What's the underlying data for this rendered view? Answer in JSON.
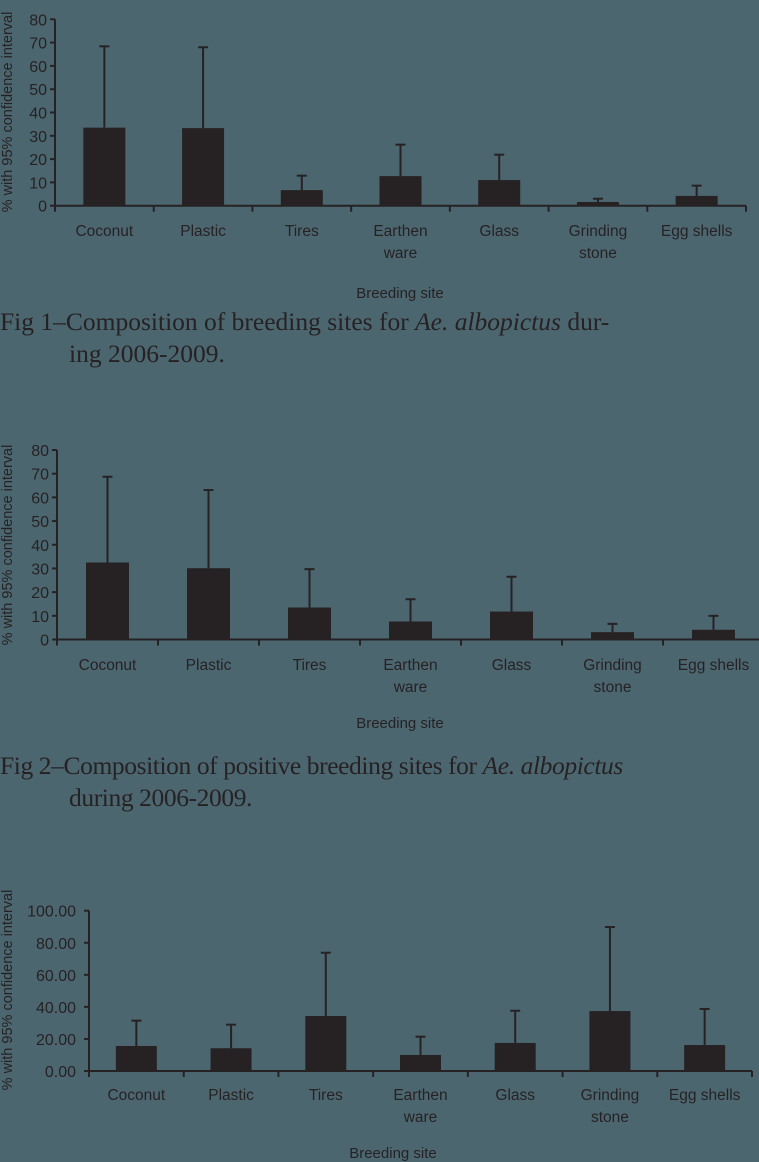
{
  "colors": {
    "background": "#4c6670",
    "ink": "#262223"
  },
  "chart_data": [
    {
      "type": "bar",
      "id": "fig1",
      "title": "Fig 1–Composition of breeding sites for Ae. albopictus during 2006-2009.",
      "xlabel": "Breeding site",
      "ylabel": "% with 95% confidence interval",
      "categories": [
        "Coconut",
        "Plastic",
        "Tires",
        "Earthen ware",
        "Glass",
        "Grinding stone",
        "Egg shells"
      ],
      "category_lines": [
        [
          "Coconut"
        ],
        [
          "Plastic"
        ],
        [
          "Tires"
        ],
        [
          "Earthen",
          "ware"
        ],
        [
          "Glass"
        ],
        [
          "Grinding",
          "stone"
        ],
        [
          "Egg shells"
        ]
      ],
      "values": [
        33.5,
        33.3,
        6.7,
        12.7,
        11.0,
        1.6,
        4.2
      ],
      "error_upper": [
        68.4,
        68.0,
        12.9,
        26.2,
        21.9,
        3.0,
        8.6
      ],
      "yticks": [
        "0",
        "10",
        "20",
        "30",
        "40",
        "50",
        "60",
        "70",
        "80"
      ],
      "ylim": [
        0,
        80
      ],
      "grid": false,
      "legend": null
    },
    {
      "type": "bar",
      "id": "fig2",
      "title": "Fig 2–Composition of positive breeding sites for Ae. albopictus during 2006-2009.",
      "xlabel": "Breeding site",
      "ylabel": "% with 95% confidence interval",
      "categories": [
        "Coconut",
        "Plastic",
        "Tires",
        "Earthen ware",
        "Glass",
        "Grinding stone",
        "Egg shells"
      ],
      "category_lines": [
        [
          "Coconut"
        ],
        [
          "Plastic"
        ],
        [
          "Tires"
        ],
        [
          "Earthen",
          "ware"
        ],
        [
          "Glass"
        ],
        [
          "Grinding",
          "stone"
        ],
        [
          "Egg shells"
        ]
      ],
      "values": [
        32.5,
        30.1,
        13.5,
        7.6,
        11.8,
        3.1,
        4.1
      ],
      "error_upper": [
        68.7,
        63.1,
        29.7,
        17.0,
        26.5,
        6.6,
        10.0
      ],
      "yticks": [
        "0",
        "10",
        "20",
        "30",
        "40",
        "50",
        "60",
        "70",
        "80"
      ],
      "ylim": [
        0,
        80
      ],
      "grid": false,
      "legend": null
    },
    {
      "type": "bar",
      "id": "fig3",
      "title": "",
      "xlabel": "Breeding site",
      "ylabel": "% with 95% confidence interval",
      "categories": [
        "Coconut",
        "Plastic",
        "Tires",
        "Earthen ware",
        "Glass",
        "Grinding stone",
        "Egg shells"
      ],
      "category_lines": [
        [
          "Coconut"
        ],
        [
          "Plastic"
        ],
        [
          "Tires"
        ],
        [
          "Earthen",
          "ware"
        ],
        [
          "Glass"
        ],
        [
          "Grinding",
          "stone"
        ],
        [
          "Egg shells"
        ]
      ],
      "values": [
        15.6,
        14.2,
        34.3,
        10.0,
        17.5,
        37.4,
        16.2
      ],
      "error_upper": [
        31.4,
        28.9,
        73.8,
        21.4,
        37.6,
        89.8,
        38.7
      ],
      "yticks": [
        "0.00",
        "20.00",
        "40.00",
        "60.00",
        "80.00",
        "100.00"
      ],
      "ylim": [
        0,
        100
      ],
      "grid": false,
      "legend": null
    }
  ],
  "captions": {
    "fig1": {
      "line1_prefix": "Fig 1–Composition of breeding sites for ",
      "species": "Ae. albopictus",
      "line1_suffix": " dur-",
      "line2": "ing 2006-2009."
    },
    "fig2": {
      "line1_prefix": "Fig 2–Composition of positive breeding sites for ",
      "species": "Ae. albopictus",
      "line1_suffix": "",
      "line2": "during 2006-2009."
    }
  }
}
